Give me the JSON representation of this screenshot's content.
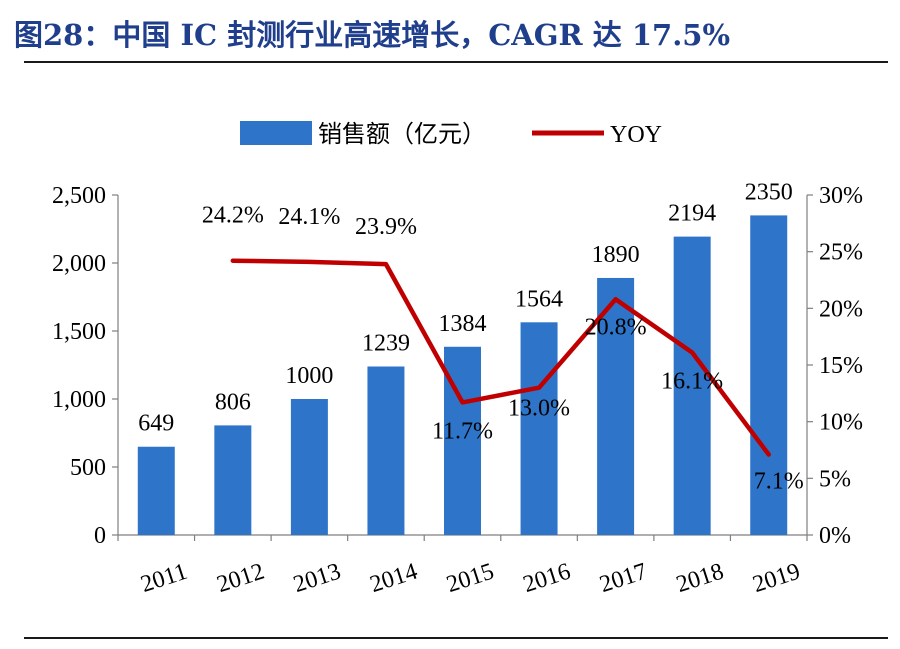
{
  "title": "图28：中国 IC 封测行业高速增长，CAGR 达 17.5%",
  "colors": {
    "title": "#1f3e8c",
    "bar": "#2e75c9",
    "line": "#c00000",
    "axis": "#7f7f7f"
  },
  "chart_data": {
    "type": "bar",
    "categories": [
      "2011",
      "2012",
      "2013",
      "2014",
      "2015",
      "2016",
      "2017",
      "2018",
      "2019"
    ],
    "series": [
      {
        "name": "销售额（亿元）",
        "type": "bar",
        "axis": "left",
        "values": [
          649,
          806,
          1000,
          1239,
          1384,
          1564,
          1890,
          2194,
          2350
        ],
        "labels": [
          "649",
          "806",
          "1000",
          "1239",
          "1384",
          "1564",
          "1890",
          "2194",
          "2350"
        ]
      },
      {
        "name": "YOY",
        "type": "line",
        "axis": "right",
        "values": [
          null,
          24.2,
          24.1,
          23.9,
          11.7,
          13.0,
          20.8,
          16.1,
          7.1
        ],
        "labels": [
          null,
          "24.2%",
          "24.1%",
          "23.9%",
          "11.7%",
          "13.0%",
          "20.8%",
          "16.1%",
          "7.1%"
        ]
      }
    ],
    "y_left": {
      "ylim": [
        0,
        2500
      ],
      "ticks": [
        "0",
        "500",
        "1,000",
        "1,500",
        "2,000",
        "2,500"
      ]
    },
    "y_right": {
      "ylim": [
        0,
        30
      ],
      "ticks": [
        "0%",
        "5%",
        "10%",
        "15%",
        "20%",
        "25%",
        "30%"
      ]
    },
    "legend": [
      "销售额（亿元）",
      "YOY"
    ],
    "legend_position": "top",
    "grid": false
  }
}
